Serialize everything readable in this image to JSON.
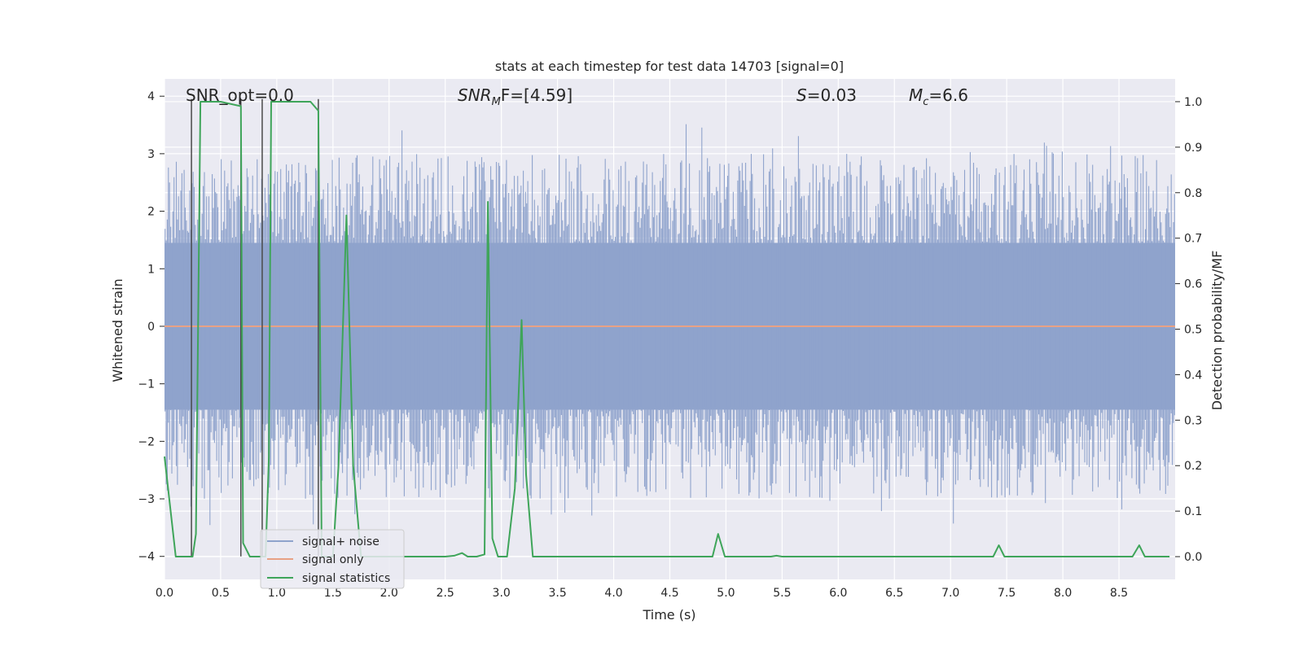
{
  "chart_data": {
    "type": "line",
    "title": "stats at each timestep for test data 14703 [signal=0]",
    "xlabel": "Time (s)",
    "ylabel_left": "Whitened strain",
    "ylabel_right": "Detection probability/MF",
    "xlim": [
      0.0,
      9.0
    ],
    "ylim_left": [
      -4.4,
      4.3
    ],
    "ylim_right": [
      -0.05,
      1.05
    ],
    "x_ticks": [
      "0.0",
      "0.5",
      "1.0",
      "1.5",
      "2.0",
      "2.5",
      "3.0",
      "3.5",
      "4.0",
      "4.5",
      "5.0",
      "5.5",
      "6.0",
      "6.5",
      "7.0",
      "7.5",
      "8.0",
      "8.5"
    ],
    "x_tick_values": [
      0.0,
      0.5,
      1.0,
      1.5,
      2.0,
      2.5,
      3.0,
      3.5,
      4.0,
      4.5,
      5.0,
      5.5,
      6.0,
      6.5,
      7.0,
      7.5,
      8.0,
      8.5
    ],
    "y_left_ticks": [
      "4",
      "3",
      "2",
      "1",
      "0",
      "−1",
      "−2",
      "−3",
      "−4"
    ],
    "y_left_tick_values": [
      4,
      3,
      2,
      1,
      0,
      -1,
      -2,
      -3,
      -4
    ],
    "y_right_ticks": [
      "1.0",
      "0.9",
      "0.8",
      "0.7",
      "0.6",
      "0.5",
      "0.4",
      "0.3",
      "0.2",
      "0.1",
      "0.0"
    ],
    "y_right_tick_values": [
      1.0,
      0.9,
      0.8,
      0.7,
      0.6,
      0.5,
      0.4,
      0.3,
      0.2,
      0.1,
      0.0
    ],
    "annotations": {
      "snr_opt": "SNR_opt=0.0",
      "snr_mf_base": "SNR",
      "snr_mf_sub": "M",
      "snr_mf_rest": "F=[4.59]",
      "s_italic": "S",
      "s_rest": "=0.03",
      "mc_base": "M",
      "mc_sub": "c",
      "mc_rest": "=6.6"
    },
    "series": [
      {
        "name": "signal+ noise",
        "axis": "left",
        "color": "#8fa3cc",
        "description": "whitened strain noise, approx. range -3.9 to 3.9"
      },
      {
        "name": "signal only",
        "axis": "left",
        "color": "#e8a185",
        "x": [
          0.0,
          9.0
        ],
        "y": [
          0.0,
          0.0
        ]
      },
      {
        "name": "signal statistics",
        "axis": "right",
        "color": "#3fa55a",
        "x": [
          0.0,
          0.05,
          0.1,
          0.2,
          0.25,
          0.28,
          0.32,
          0.5,
          0.68,
          0.7,
          0.76,
          0.82,
          0.9,
          0.93,
          0.95,
          1.0,
          1.3,
          1.37,
          1.4,
          1.45,
          1.5,
          1.55,
          1.62,
          1.68,
          1.75,
          1.8,
          2.0,
          2.5,
          2.58,
          2.65,
          2.7,
          2.78,
          2.85,
          2.88,
          2.92,
          2.97,
          3.05,
          3.12,
          3.18,
          3.22,
          3.28,
          3.5,
          4.0,
          4.5,
          4.88,
          4.93,
          4.99,
          5.2,
          5.4,
          5.45,
          5.5,
          6.0,
          6.5,
          7.0,
          7.38,
          7.43,
          7.48,
          7.6,
          8.0,
          8.55,
          8.62,
          8.68,
          8.73,
          8.8,
          8.95
        ],
        "y": [
          0.22,
          0.11,
          0.0,
          0.0,
          0.0,
          0.05,
          1.0,
          1.0,
          0.99,
          0.03,
          0.0,
          0.0,
          0.0,
          0.22,
          1.0,
          1.0,
          1.0,
          0.98,
          0.0,
          0.0,
          0.0,
          0.2,
          0.75,
          0.2,
          0.0,
          0.0,
          0.0,
          0.0,
          0.002,
          0.008,
          0.0,
          0.0,
          0.005,
          0.78,
          0.04,
          0.0,
          0.0,
          0.15,
          0.52,
          0.18,
          0.0,
          0.0,
          0.0,
          0.0,
          0.0,
          0.05,
          0.0,
          0.0,
          0.0,
          0.002,
          0.0,
          0.0,
          0.0,
          0.0,
          0.0,
          0.025,
          0.0,
          0.0,
          0.0,
          0.0,
          0.0,
          0.025,
          0.0,
          0.0,
          0.0
        ]
      }
    ],
    "vertical_markers": [
      0.24,
      0.68,
      0.87,
      1.37
    ],
    "legend": {
      "location": "lower-left",
      "entries": [
        {
          "label": "signal+ noise",
          "color": "#8fa3cc"
        },
        {
          "label": "signal only",
          "color": "#e8a185"
        },
        {
          "label": "signal statistics",
          "color": "#3fa55a"
        }
      ]
    },
    "style": {
      "plot_bg": "#eaeaf2",
      "grid_color": "#ffffff",
      "marker_color": "#4a4a4a"
    }
  }
}
